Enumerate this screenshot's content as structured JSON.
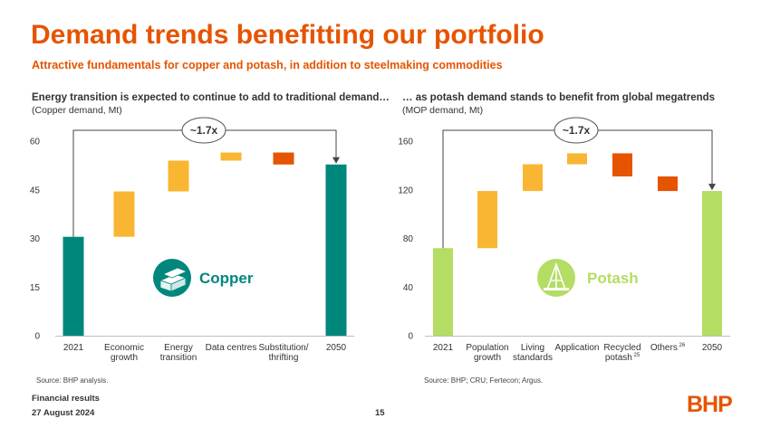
{
  "page": {
    "title": "Demand trends benefitting our portfolio",
    "subtitle": "Attractive fundamentals for copper and potash, in addition to steelmaking commodities",
    "footer_line1": "Financial results",
    "footer_line2": "27 August 2024",
    "page_number": "15",
    "logo": "BHP"
  },
  "colors": {
    "accent": "#e65400",
    "copper": "#00877c",
    "potash": "#b4dd63",
    "increase": "#f9b632",
    "decrease": "#e65400"
  },
  "chart_data": [
    {
      "type": "bar",
      "subtype": "waterfall",
      "title": "Energy transition is expected to continue to add to traditional demand…",
      "unit_label": "(Copper demand, Mt)",
      "source": "Source: BHP analysis.",
      "multiplier_label": "~1.7x",
      "badge_label": "Copper",
      "badge_icon": "copper-cathode-icon",
      "ylim": [
        0,
        60
      ],
      "yticks": [
        "0",
        "15",
        "30",
        "45",
        "60"
      ],
      "categories": [
        {
          "lines": [
            "2021"
          ],
          "sup": ""
        },
        {
          "lines": [
            "Economic",
            "growth"
          ],
          "sup": ""
        },
        {
          "lines": [
            "Energy",
            "transition"
          ],
          "sup": ""
        },
        {
          "lines": [
            "Data centres"
          ],
          "sup": ""
        },
        {
          "lines": [
            "Substitution/",
            "thrifting"
          ],
          "sup": ""
        },
        {
          "lines": [
            "2050"
          ],
          "sup": ""
        }
      ],
      "bars": [
        {
          "kind": "total",
          "start": 0,
          "end": 30.5
        },
        {
          "kind": "increase",
          "start": 30.5,
          "end": 44.5
        },
        {
          "kind": "increase",
          "start": 44.5,
          "end": 54
        },
        {
          "kind": "increase",
          "start": 54,
          "end": 56.5
        },
        {
          "kind": "decrease",
          "start": 56.5,
          "end": 52.8
        },
        {
          "kind": "total",
          "start": 0,
          "end": 52.8
        }
      ]
    },
    {
      "type": "bar",
      "subtype": "waterfall",
      "title": "… as potash demand stands to benefit from global megatrends",
      "unit_label": "(MOP demand, Mt)",
      "source": "Source: BHP; CRU; Fertecon; Argus.",
      "multiplier_label": "~1.7x",
      "badge_label": "Potash",
      "badge_icon": "potash-plant-icon",
      "ylim": [
        0,
        160
      ],
      "yticks": [
        "0",
        "40",
        "80",
        "120",
        "160"
      ],
      "categories": [
        {
          "lines": [
            "2021"
          ],
          "sup": ""
        },
        {
          "lines": [
            "Population",
            "growth"
          ],
          "sup": ""
        },
        {
          "lines": [
            "Living",
            "standards"
          ],
          "sup": ""
        },
        {
          "lines": [
            "Application"
          ],
          "sup": ""
        },
        {
          "lines": [
            "Recycled",
            "potash"
          ],
          "sup": "25"
        },
        {
          "lines": [
            "Others"
          ],
          "sup": "26"
        },
        {
          "lines": [
            "2050"
          ],
          "sup": ""
        }
      ],
      "bars": [
        {
          "kind": "total",
          "start": 0,
          "end": 72
        },
        {
          "kind": "increase",
          "start": 72,
          "end": 119
        },
        {
          "kind": "increase",
          "start": 119,
          "end": 141
        },
        {
          "kind": "increase",
          "start": 141,
          "end": 150
        },
        {
          "kind": "decrease",
          "start": 150,
          "end": 131
        },
        {
          "kind": "decrease",
          "start": 131,
          "end": 119
        },
        {
          "kind": "total",
          "start": 0,
          "end": 119
        }
      ]
    }
  ]
}
